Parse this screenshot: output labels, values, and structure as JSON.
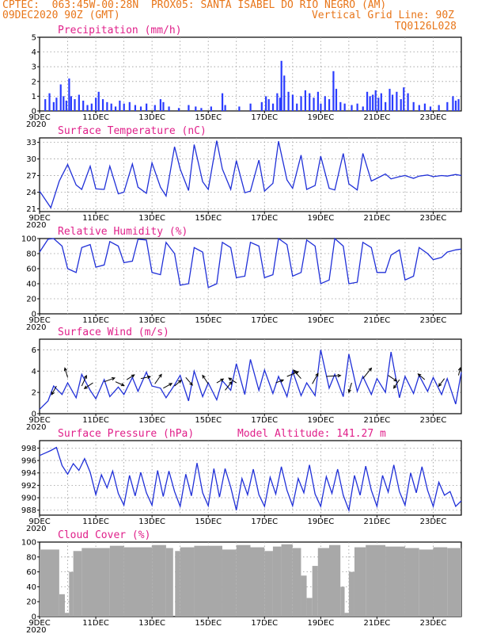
{
  "header": {
    "left1": "CPTEC:  063:45W-00:28N  PROX05: SANTA ISABEL DO RIO NEGRO (AM)",
    "left2": "09DEC2020 90Z (GMT)",
    "right2": "Vertical Grid Line: 90Z",
    "right3": "TQ0126L028"
  },
  "x_ticks": [
    "9DEC",
    "11DEC",
    "13DEC",
    "15DEC",
    "17DEC",
    "19DEC",
    "21DEC",
    "23DEC"
  ],
  "year_label": "2020",
  "colors": {
    "line": "#2030d8",
    "bar": "#2a3cff",
    "cloud": "#a8a8a8",
    "title": "#e0208a",
    "header": "#e8761a"
  },
  "chart_data": [
    {
      "type": "bar",
      "title": "Precipitation (mm/h)",
      "ylim": [
        0,
        5
      ],
      "yticks": [
        0,
        1,
        2,
        3,
        4,
        5
      ],
      "x_days": [
        0,
        15
      ],
      "events": [
        [
          0.2,
          0.8
        ],
        [
          0.35,
          1.2
        ],
        [
          0.5,
          0.6
        ],
        [
          0.6,
          0.9
        ],
        [
          0.75,
          1.8
        ],
        [
          0.85,
          1.0
        ],
        [
          0.95,
          0.7
        ],
        [
          1.05,
          2.2
        ],
        [
          1.12,
          1.0
        ],
        [
          1.25,
          0.8
        ],
        [
          1.4,
          1.1
        ],
        [
          1.55,
          0.7
        ],
        [
          1.7,
          0.4
        ],
        [
          1.85,
          0.5
        ],
        [
          2.0,
          0.9
        ],
        [
          2.1,
          1.3
        ],
        [
          2.25,
          0.8
        ],
        [
          2.4,
          0.6
        ],
        [
          2.55,
          0.5
        ],
        [
          2.7,
          0.3
        ],
        [
          2.85,
          0.7
        ],
        [
          3.0,
          0.5
        ],
        [
          3.2,
          0.6
        ],
        [
          3.4,
          0.4
        ],
        [
          3.6,
          0.3
        ],
        [
          3.8,
          0.5
        ],
        [
          4.1,
          0.4
        ],
        [
          4.3,
          0.8
        ],
        [
          4.4,
          0.6
        ],
        [
          4.6,
          0.3
        ],
        [
          4.95,
          0.2
        ],
        [
          5.3,
          0.4
        ],
        [
          5.55,
          0.3
        ],
        [
          5.75,
          0.2
        ],
        [
          6.1,
          0.3
        ],
        [
          6.5,
          1.2
        ],
        [
          6.6,
          0.4
        ],
        [
          7.1,
          0.3
        ],
        [
          7.5,
          0.5
        ],
        [
          7.9,
          0.6
        ],
        [
          8.05,
          1.0
        ],
        [
          8.15,
          0.8
        ],
        [
          8.3,
          0.5
        ],
        [
          8.45,
          1.2
        ],
        [
          8.55,
          0.9
        ],
        [
          8.6,
          3.4
        ],
        [
          8.7,
          2.4
        ],
        [
          8.85,
          1.3
        ],
        [
          9.0,
          1.1
        ],
        [
          9.15,
          0.5
        ],
        [
          9.3,
          1.0
        ],
        [
          9.45,
          1.4
        ],
        [
          9.6,
          1.2
        ],
        [
          9.75,
          0.9
        ],
        [
          9.9,
          1.3
        ],
        [
          10.0,
          0.5
        ],
        [
          10.15,
          1.0
        ],
        [
          10.3,
          0.8
        ],
        [
          10.45,
          2.7
        ],
        [
          10.55,
          1.5
        ],
        [
          10.7,
          0.6
        ],
        [
          10.85,
          0.5
        ],
        [
          11.1,
          0.4
        ],
        [
          11.3,
          0.5
        ],
        [
          11.5,
          0.3
        ],
        [
          11.65,
          1.3
        ],
        [
          11.75,
          1.0
        ],
        [
          11.85,
          1.1
        ],
        [
          11.95,
          1.4
        ],
        [
          12.05,
          0.9
        ],
        [
          12.15,
          1.2
        ],
        [
          12.3,
          0.6
        ],
        [
          12.45,
          1.5
        ],
        [
          12.55,
          1.1
        ],
        [
          12.7,
          1.3
        ],
        [
          12.85,
          0.8
        ],
        [
          12.95,
          1.6
        ],
        [
          13.1,
          1.2
        ],
        [
          13.3,
          0.6
        ],
        [
          13.5,
          0.4
        ],
        [
          13.7,
          0.5
        ],
        [
          13.9,
          0.3
        ],
        [
          14.2,
          0.4
        ],
        [
          14.5,
          0.6
        ],
        [
          14.7,
          1.0
        ],
        [
          14.8,
          0.7
        ],
        [
          14.9,
          0.8
        ]
      ]
    },
    {
      "type": "line",
      "title": "Surface Temperature (nC)",
      "ylim": [
        20.5,
        33.8
      ],
      "yticks": [
        21,
        24,
        27,
        30,
        33
      ],
      "x": [
        0,
        0.4,
        0.7,
        1.0,
        1.3,
        1.5,
        1.8,
        2.0,
        2.3,
        2.5,
        2.8,
        3.0,
        3.3,
        3.5,
        3.8,
        4.0,
        4.3,
        4.5,
        4.8,
        5.0,
        5.3,
        5.5,
        5.8,
        6.0,
        6.3,
        6.5,
        6.8,
        7.0,
        7.3,
        7.5,
        7.8,
        8.0,
        8.3,
        8.5,
        8.8,
        9.0,
        9.3,
        9.5,
        9.8,
        10.0,
        10.3,
        10.5,
        10.8,
        11.0,
        11.3,
        11.5,
        11.8,
        12.0,
        12.3,
        12.5,
        12.8,
        13.0,
        13.3,
        13.5,
        13.8,
        14.0,
        14.3,
        14.5,
        14.8,
        15.0
      ],
      "y": [
        24.2,
        21.2,
        26.0,
        29.0,
        25.3,
        24.5,
        28.7,
        24.6,
        24.5,
        28.7,
        23.7,
        24.0,
        29.1,
        24.9,
        23.8,
        29.3,
        24.9,
        23.3,
        32.2,
        28.2,
        24.3,
        32.6,
        25.9,
        24.5,
        33.3,
        28.2,
        24.5,
        29.7,
        23.9,
        24.2,
        29.8,
        24.2,
        25.6,
        33.2,
        26.2,
        24.7,
        30.7,
        24.5,
        25.2,
        30.5,
        24.7,
        24.4,
        31.0,
        25.5,
        24.4,
        31.0,
        26.0,
        26.5,
        27.3,
        26.4,
        26.8,
        27.0,
        26.5,
        26.9,
        27.1,
        26.8,
        27.0,
        26.9,
        27.2,
        27.0
      ]
    },
    {
      "type": "line",
      "title": "Relative Humidity (%)",
      "ylim": [
        0,
        100
      ],
      "yticks": [
        0,
        20,
        40,
        60,
        80,
        100
      ],
      "x": [
        0,
        0.3,
        0.5,
        0.8,
        1.0,
        1.3,
        1.5,
        1.8,
        2.0,
        2.3,
        2.5,
        2.8,
        3.0,
        3.3,
        3.5,
        3.8,
        4.0,
        4.3,
        4.5,
        4.8,
        5.0,
        5.3,
        5.5,
        5.8,
        6.0,
        6.3,
        6.5,
        6.8,
        7.0,
        7.3,
        7.5,
        7.8,
        8.0,
        8.3,
        8.5,
        8.8,
        9.0,
        9.3,
        9.5,
        9.8,
        10.0,
        10.3,
        10.5,
        10.8,
        11.0,
        11.3,
        11.5,
        11.8,
        12.0,
        12.3,
        12.5,
        12.8,
        13.0,
        13.3,
        13.5,
        13.8,
        14.0,
        14.3,
        14.5,
        14.8,
        15.0
      ],
      "y": [
        82,
        99,
        100,
        90,
        60,
        55,
        88,
        92,
        62,
        65,
        96,
        90,
        68,
        70,
        99,
        98,
        55,
        52,
        95,
        80,
        38,
        40,
        88,
        82,
        35,
        40,
        95,
        88,
        48,
        50,
        95,
        90,
        48,
        52,
        100,
        92,
        50,
        55,
        98,
        90,
        40,
        45,
        100,
        90,
        40,
        42,
        95,
        88,
        55,
        55,
        78,
        85,
        45,
        50,
        88,
        80,
        72,
        75,
        82,
        85,
        86
      ]
    },
    {
      "type": "line",
      "title": "Surface Wind (m/s)",
      "ylim": [
        0,
        7
      ],
      "yticks": [
        0,
        2,
        4,
        6
      ],
      "x": [
        0,
        0.3,
        0.5,
        0.8,
        1.0,
        1.3,
        1.5,
        1.8,
        2.0,
        2.3,
        2.5,
        2.8,
        3.0,
        3.3,
        3.5,
        3.8,
        4.0,
        4.3,
        4.5,
        4.8,
        5.0,
        5.3,
        5.5,
        5.8,
        6.0,
        6.3,
        6.5,
        6.8,
        7.0,
        7.3,
        7.5,
        7.8,
        8.0,
        8.3,
        8.5,
        8.8,
        9.0,
        9.3,
        9.5,
        9.8,
        10.0,
        10.3,
        10.5,
        10.8,
        11.0,
        11.3,
        11.5,
        11.8,
        12.0,
        12.3,
        12.5,
        12.8,
        13.0,
        13.3,
        13.5,
        13.8,
        14.0,
        14.3,
        14.5,
        14.8,
        15.0
      ],
      "y": [
        0.4,
        1.2,
        2.6,
        1.8,
        2.9,
        1.5,
        3.7,
        2.2,
        1.4,
        3.2,
        1.6,
        2.5,
        1.8,
        3.4,
        2.1,
        3.9,
        2.6,
        2.4,
        1.5,
        2.7,
        3.6,
        1.2,
        4.0,
        1.6,
        2.9,
        1.3,
        3.1,
        2.2,
        4.7,
        1.8,
        5.1,
        2.2,
        4.1,
        1.9,
        3.5,
        1.6,
        4.0,
        1.7,
        2.9,
        1.7,
        6.0,
        2.4,
        3.7,
        1.6,
        5.6,
        2.1,
        3.5,
        1.8,
        3.3,
        2.0,
        5.8,
        1.5,
        3.5,
        1.9,
        3.6,
        2.1,
        3.4,
        1.8,
        3.3,
        0.9,
        3.9
      ],
      "vectors": [
        [
          0.6,
          2.6,
          -0.5,
          -0.9
        ],
        [
          1.0,
          3.4,
          -0.3,
          1.0
        ],
        [
          1.5,
          2.6,
          0.5,
          1.1
        ],
        [
          1.9,
          2.9,
          -0.9,
          -0.6
        ],
        [
          2.3,
          3.0,
          1.1,
          0.4
        ],
        [
          2.7,
          3.0,
          0.9,
          -0.4
        ],
        [
          3.1,
          3.2,
          0.8,
          0.5
        ],
        [
          3.6,
          3.3,
          1.0,
          0.2
        ],
        [
          4.1,
          2.8,
          0.7,
          1.0
        ],
        [
          4.4,
          2.4,
          0.9,
          0.5
        ],
        [
          4.8,
          2.6,
          0.7,
          0.6
        ],
        [
          5.2,
          3.4,
          0.7,
          -0.8
        ],
        [
          6.0,
          2.8,
          -0.6,
          0.9
        ],
        [
          6.3,
          2.9,
          0.7,
          0.4
        ],
        [
          6.6,
          2.2,
          0.7,
          0.9
        ],
        [
          7.0,
          2.9,
          -0.8,
          0.5
        ],
        [
          8.4,
          2.9,
          0.8,
          0.3
        ],
        [
          8.8,
          3.5,
          1.2,
          0.5
        ],
        [
          9.3,
          3.3,
          -0.8,
          0.9
        ],
        [
          9.7,
          2.8,
          0.6,
          1.1
        ],
        [
          10.2,
          3.5,
          1.5,
          0.1
        ],
        [
          11.1,
          2.9,
          -0.3,
          -1.0
        ],
        [
          11.5,
          3.3,
          0.9,
          1.1
        ],
        [
          12.4,
          3.6,
          0.9,
          -0.6
        ],
        [
          12.8,
          3.2,
          -0.6,
          -0.9
        ],
        [
          13.7,
          3.2,
          -0.7,
          0.6
        ],
        [
          14.4,
          3.3,
          -0.6,
          -0.8
        ],
        [
          14.9,
          3.6,
          0.2,
          0.8
        ]
      ]
    },
    {
      "type": "line",
      "title": "Surface Pressure (hPa)",
      "annotation": "Model Altitude: 141.27 m",
      "ylim": [
        987.2,
        999.2
      ],
      "yticks": [
        988,
        990,
        992,
        994,
        996,
        998
      ],
      "x": [
        0,
        0.2,
        0.4,
        0.6,
        0.8,
        1.0,
        1.2,
        1.4,
        1.6,
        1.8,
        2.0,
        2.2,
        2.4,
        2.6,
        2.8,
        3.0,
        3.2,
        3.4,
        3.6,
        3.8,
        4.0,
        4.2,
        4.4,
        4.6,
        4.8,
        5.0,
        5.2,
        5.4,
        5.6,
        5.8,
        6.0,
        6.2,
        6.4,
        6.6,
        6.8,
        7.0,
        7.2,
        7.4,
        7.6,
        7.8,
        8.0,
        8.2,
        8.4,
        8.6,
        8.8,
        9.0,
        9.2,
        9.4,
        9.6,
        9.8,
        10.0,
        10.2,
        10.4,
        10.6,
        10.8,
        11.0,
        11.2,
        11.4,
        11.6,
        11.8,
        12.0,
        12.2,
        12.4,
        12.6,
        12.8,
        13.0,
        13.2,
        13.4,
        13.6,
        13.8,
        14.0,
        14.2,
        14.4,
        14.6,
        14.8,
        15.0
      ],
      "y": [
        996.8,
        997.2,
        997.6,
        998.1,
        995.2,
        993.8,
        995.5,
        994.4,
        996.3,
        994.1,
        990.5,
        993.7,
        991.6,
        994.3,
        990.7,
        988.8,
        993.6,
        990.3,
        994.1,
        990.8,
        988.8,
        994.4,
        990.2,
        994.3,
        991.0,
        988.6,
        993.8,
        990.3,
        995.6,
        990.8,
        988.7,
        994.7,
        990.1,
        994.7,
        991.7,
        988.0,
        993.1,
        990.5,
        994.6,
        990.5,
        988.6,
        993.3,
        990.6,
        995.0,
        991.2,
        988.7,
        993.1,
        990.8,
        995.3,
        990.6,
        988.6,
        993.4,
        990.7,
        994.6,
        990.4,
        988.0,
        993.6,
        990.4,
        995.1,
        991.2,
        988.6,
        993.6,
        990.9,
        995.3,
        991.0,
        988.8,
        994.0,
        990.8,
        995.0,
        991.2,
        988.6,
        992.5,
        990.4,
        991.0,
        988.6,
        989.5
      ]
    },
    {
      "type": "bar",
      "title": "Cloud Cover (%)",
      "ylim": [
        0,
        100
      ],
      "yticks": [
        0,
        20,
        40,
        60,
        80,
        100
      ],
      "x_days": [
        0,
        15
      ],
      "segments": [
        [
          0,
          0.7,
          90
        ],
        [
          0.7,
          0.9,
          30
        ],
        [
          0.9,
          1.05,
          5
        ],
        [
          1.05,
          1.2,
          60
        ],
        [
          1.2,
          1.5,
          88
        ],
        [
          1.5,
          2.5,
          92
        ],
        [
          2.5,
          3.0,
          95
        ],
        [
          3.0,
          4.0,
          93
        ],
        [
          4.0,
          4.5,
          96
        ],
        [
          4.5,
          4.75,
          92
        ],
        [
          4.75,
          4.82,
          0
        ],
        [
          4.82,
          5.0,
          88
        ],
        [
          5.0,
          5.5,
          93
        ],
        [
          5.5,
          6.5,
          95
        ],
        [
          6.5,
          7.0,
          90
        ],
        [
          7.0,
          7.5,
          96
        ],
        [
          7.5,
          8.0,
          93
        ],
        [
          8.0,
          8.3,
          88
        ],
        [
          8.3,
          8.6,
          94
        ],
        [
          8.6,
          9.0,
          97
        ],
        [
          9.0,
          9.3,
          92
        ],
        [
          9.3,
          9.5,
          55
        ],
        [
          9.5,
          9.7,
          25
        ],
        [
          9.7,
          9.9,
          68
        ],
        [
          9.9,
          10.3,
          92
        ],
        [
          10.3,
          10.7,
          96
        ],
        [
          10.7,
          10.85,
          40
        ],
        [
          10.85,
          11.0,
          5
        ],
        [
          11.0,
          11.2,
          60
        ],
        [
          11.2,
          11.6,
          93
        ],
        [
          11.6,
          12.3,
          96
        ],
        [
          12.3,
          13.0,
          94
        ],
        [
          13.0,
          13.5,
          92
        ],
        [
          13.5,
          14.0,
          90
        ],
        [
          14.0,
          14.5,
          93
        ],
        [
          14.5,
          15.0,
          92
        ]
      ]
    }
  ]
}
